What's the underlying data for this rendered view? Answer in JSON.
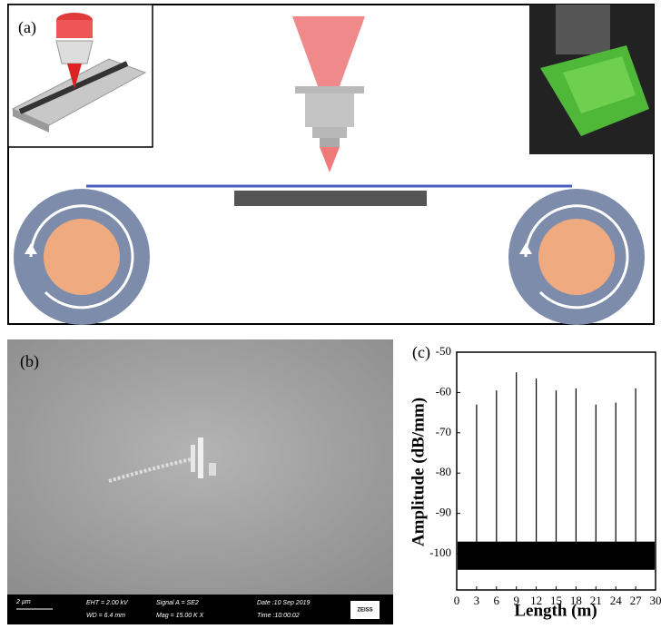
{
  "panel_a": {
    "label": "(a)"
  },
  "panel_b": {
    "label": "(b)",
    "scale_bar": "2 µm",
    "eht": "EHT = 2.00 kV",
    "wd": "WD = 6.4 mm",
    "signal": "Signal A = SE2",
    "mag": "Mag = 15.00 K X",
    "date": "Date :10 Sep 2019",
    "time": "Time :10:00:02",
    "brand": "ZEISS"
  },
  "chart_data": {
    "type": "stem",
    "label": "(c)",
    "x_label": "Length (m)",
    "y_label": "Amplitude (dB/mm)",
    "x": [
      3,
      6,
      9,
      12,
      15,
      18,
      21,
      24,
      27
    ],
    "values": [
      -63,
      -59.5,
      -55,
      -56.5,
      -59.5,
      -59,
      -63,
      -62.5,
      -59
    ],
    "baseline": -100,
    "noise_band": [
      -104,
      -97
    ],
    "color": "#000000",
    "xlim": [
      0,
      30
    ],
    "xticks": [
      0,
      3,
      6,
      9,
      12,
      15,
      18,
      21,
      24,
      27,
      30
    ],
    "ylim": [
      -109,
      -50
    ],
    "yticks": [
      -50,
      -60,
      -70,
      -80,
      -90,
      -100
    ]
  }
}
